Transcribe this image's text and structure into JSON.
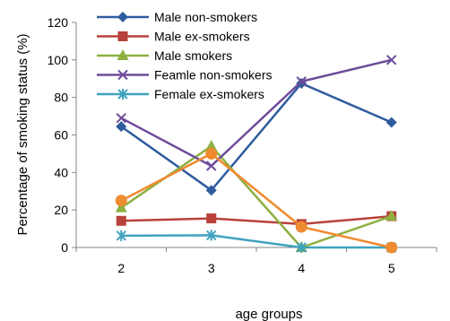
{
  "chart_data": {
    "type": "line",
    "xlabel": "age groups",
    "ylabel": "Percentage of  smoking status (%)",
    "categories": [
      "2",
      "3",
      "4",
      "5"
    ],
    "yticks": [
      "0",
      "20",
      "40",
      "60",
      "80",
      "100",
      "120"
    ],
    "ylim": [
      0,
      120
    ],
    "grid": false,
    "legend_position": "top-center",
    "series": [
      {
        "name": "Male non-smokers",
        "color": "#2E5C9E",
        "marker": "diamond",
        "values": [
          64.5,
          30.5,
          87.5,
          66.7
        ]
      },
      {
        "name": "Male ex-smokers",
        "color": "#B8413A",
        "marker": "square",
        "values": [
          14.2,
          15.5,
          12.5,
          16.7
        ]
      },
      {
        "name": "Male smokers",
        "color": "#8DB040",
        "marker": "triangle",
        "values": [
          21.2,
          54.0,
          0.0,
          16.7
        ]
      },
      {
        "name": "Feamle non-smokers",
        "color": "#6E4C9A",
        "marker": "x",
        "values": [
          69.0,
          43.5,
          88.5,
          100.0
        ]
      },
      {
        "name": "Female ex-smokers",
        "color": "#3FA2BF",
        "marker": "asterisk",
        "values": [
          6.3,
          6.5,
          0.0,
          0.0
        ]
      },
      {
        "name": "",
        "color": "#EE8A2F",
        "marker": "circle",
        "values": [
          25.0,
          50.0,
          11.0,
          0.0
        ]
      }
    ]
  }
}
